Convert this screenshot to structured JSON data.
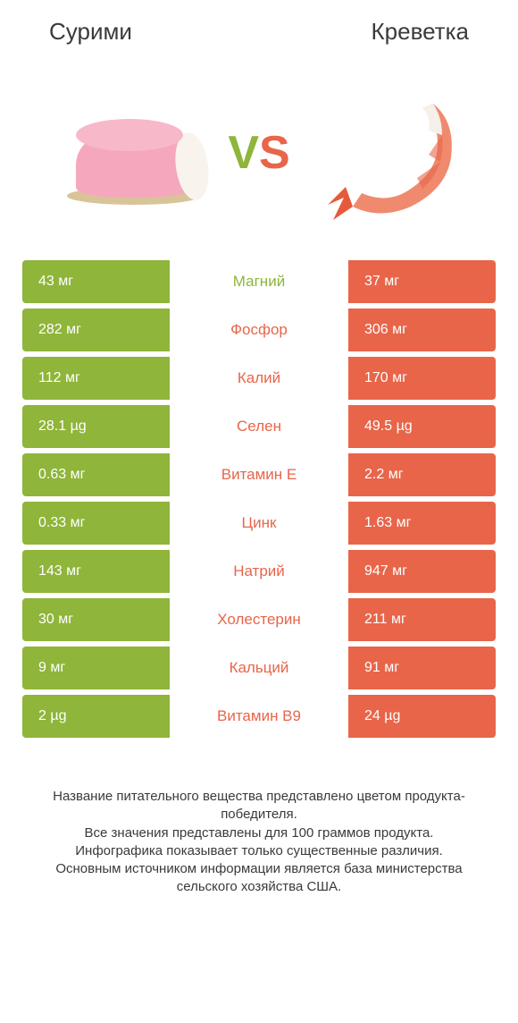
{
  "header": {
    "left_title": "Сурими",
    "right_title": "Креветка"
  },
  "vs": {
    "v": "V",
    "s": "S"
  },
  "colors": {
    "green": "#8fb53a",
    "orange": "#e8654a",
    "text_dark": "#3a3a3a",
    "surimi_pink": "#f5a8bd",
    "surimi_white": "#f8f4ed",
    "surimi_base": "#d9c49a",
    "shrimp_body": "#f08a6e",
    "shrimp_tail": "#e55a3a"
  },
  "table": {
    "rows": [
      {
        "label": "Магний",
        "left": "43 мг",
        "right": "37 мг",
        "winner": "left"
      },
      {
        "label": "Фосфор",
        "left": "282 мг",
        "right": "306 мг",
        "winner": "right"
      },
      {
        "label": "Калий",
        "left": "112 мг",
        "right": "170 мг",
        "winner": "right"
      },
      {
        "label": "Селен",
        "left": "28.1 µg",
        "right": "49.5 µg",
        "winner": "right"
      },
      {
        "label": "Витамин E",
        "left": "0.63 мг",
        "right": "2.2 мг",
        "winner": "right"
      },
      {
        "label": "Цинк",
        "left": "0.33 мг",
        "right": "1.63 мг",
        "winner": "right"
      },
      {
        "label": "Натрий",
        "left": "143 мг",
        "right": "947 мг",
        "winner": "right"
      },
      {
        "label": "Холестерин",
        "left": "30 мг",
        "right": "211 мг",
        "winner": "right"
      },
      {
        "label": "Кальций",
        "left": "9 мг",
        "right": "91 мг",
        "winner": "right"
      },
      {
        "label": "Витамин B9",
        "left": "2 µg",
        "right": "24 µg",
        "winner": "right"
      }
    ]
  },
  "footer": {
    "lines": [
      "Название питательного вещества представлено цветом продукта-победителя.",
      "Все значения представлены для 100 граммов продукта.",
      "Инфографика показывает только существенные различия.",
      "Основным источником информации является база министерства сельского хозяйства США."
    ]
  }
}
